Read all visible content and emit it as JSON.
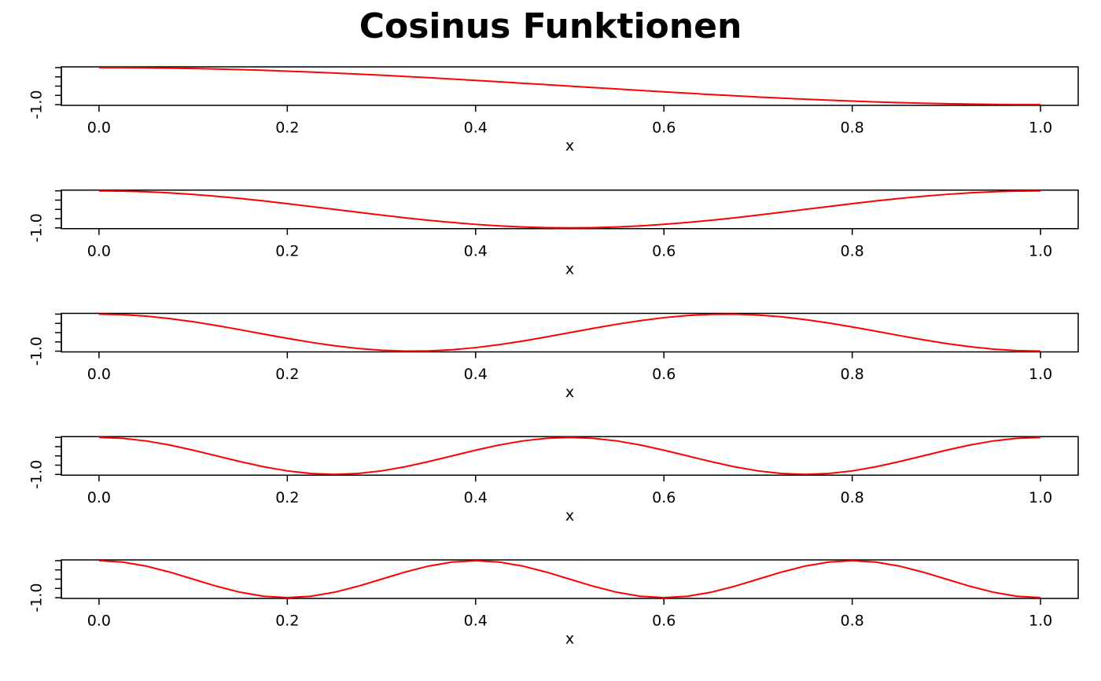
{
  "title": "Cosinus Funktionen",
  "chart_data": [
    {
      "type": "line",
      "xlabel": "x",
      "x": [
        0,
        0.025,
        0.05,
        0.075,
        0.1,
        0.125,
        0.15,
        0.175,
        0.2,
        0.225,
        0.25,
        0.275,
        0.3,
        0.325,
        0.35,
        0.375,
        0.4,
        0.425,
        0.45,
        0.475,
        0.5,
        0.525,
        0.55,
        0.575,
        0.6,
        0.625,
        0.65,
        0.675,
        0.7,
        0.725,
        0.75,
        0.775,
        0.8,
        0.825,
        0.85,
        0.875,
        0.9,
        0.925,
        0.95,
        0.975,
        1
      ],
      "series": [
        {
          "color": "#ff0000",
          "values": [
            1,
            0.997,
            0.988,
            0.972,
            0.951,
            0.924,
            0.891,
            0.853,
            0.809,
            0.76,
            0.707,
            0.649,
            0.588,
            0.522,
            0.454,
            0.383,
            0.309,
            0.233,
            0.156,
            0.078,
            0,
            -0.078,
            -0.156,
            -0.233,
            -0.309,
            -0.383,
            -0.454,
            -0.522,
            -0.588,
            -0.649,
            -0.707,
            -0.76,
            -0.809,
            -0.853,
            -0.891,
            -0.924,
            -0.951,
            -0.972,
            -0.988,
            -0.997,
            -1
          ]
        }
      ],
      "xlim": [
        -0.04,
        1.04
      ],
      "ylim": [
        -1.04,
        1.04
      ],
      "xticks": [
        {
          "value": 0,
          "label": "0.0"
        },
        0.2,
        0.4,
        0.6,
        0.8,
        {
          "value": 1,
          "label": "1.0"
        }
      ],
      "yticks": [
        {
          "value": -1,
          "label": "-1.0"
        }
      ],
      "yminor_ticks": [
        -0.5,
        0,
        0.5,
        1
      ]
    },
    {
      "type": "line",
      "xlabel": "x",
      "x": [
        0,
        0.025,
        0.05,
        0.075,
        0.1,
        0.125,
        0.15,
        0.175,
        0.2,
        0.225,
        0.25,
        0.275,
        0.3,
        0.325,
        0.35,
        0.375,
        0.4,
        0.425,
        0.45,
        0.475,
        0.5,
        0.525,
        0.55,
        0.575,
        0.6,
        0.625,
        0.65,
        0.675,
        0.7,
        0.725,
        0.75,
        0.775,
        0.8,
        0.825,
        0.85,
        0.875,
        0.9,
        0.925,
        0.95,
        0.975,
        1
      ],
      "series": [
        {
          "color": "#ff0000",
          "values": [
            1,
            0.988,
            0.951,
            0.891,
            0.809,
            0.707,
            0.588,
            0.454,
            0.309,
            0.156,
            0,
            -0.156,
            -0.309,
            -0.454,
            -0.588,
            -0.707,
            -0.809,
            -0.891,
            -0.951,
            -0.988,
            -1,
            -0.988,
            -0.951,
            -0.891,
            -0.809,
            -0.707,
            -0.588,
            -0.454,
            -0.309,
            -0.156,
            0,
            0.156,
            0.309,
            0.454,
            0.588,
            0.707,
            0.809,
            0.891,
            0.951,
            0.988,
            1
          ]
        }
      ],
      "xlim": [
        -0.04,
        1.04
      ],
      "ylim": [
        -1.04,
        1.04
      ],
      "xticks": [
        {
          "value": 0,
          "label": "0.0"
        },
        0.2,
        0.4,
        0.6,
        0.8,
        {
          "value": 1,
          "label": "1.0"
        }
      ],
      "yticks": [
        {
          "value": -1,
          "label": "-1.0"
        }
      ],
      "yminor_ticks": [
        -0.5,
        0,
        0.5,
        1
      ]
    },
    {
      "type": "line",
      "xlabel": "x",
      "x": [
        0,
        0.025,
        0.05,
        0.075,
        0.1,
        0.125,
        0.15,
        0.175,
        0.2,
        0.225,
        0.25,
        0.275,
        0.3,
        0.325,
        0.35,
        0.375,
        0.4,
        0.425,
        0.45,
        0.475,
        0.5,
        0.525,
        0.55,
        0.575,
        0.6,
        0.625,
        0.65,
        0.675,
        0.7,
        0.725,
        0.75,
        0.775,
        0.8,
        0.825,
        0.85,
        0.875,
        0.9,
        0.925,
        0.95,
        0.975,
        1
      ],
      "series": [
        {
          "color": "#ff0000",
          "values": [
            1,
            0.972,
            0.891,
            0.76,
            0.588,
            0.383,
            0.156,
            -0.078,
            -0.309,
            -0.522,
            -0.707,
            -0.853,
            -0.951,
            -0.997,
            -0.988,
            -0.924,
            -0.809,
            -0.649,
            -0.454,
            -0.233,
            0,
            0.233,
            0.454,
            0.649,
            0.809,
            0.924,
            0.988,
            0.997,
            0.951,
            0.853,
            0.707,
            0.522,
            0.309,
            0.078,
            -0.156,
            -0.383,
            -0.588,
            -0.76,
            -0.891,
            -0.972,
            -1
          ]
        }
      ],
      "xlim": [
        -0.04,
        1.04
      ],
      "ylim": [
        -1.04,
        1.04
      ],
      "xticks": [
        {
          "value": 0,
          "label": "0.0"
        },
        0.2,
        0.4,
        0.6,
        0.8,
        {
          "value": 1,
          "label": "1.0"
        }
      ],
      "yticks": [
        {
          "value": -1,
          "label": "-1.0"
        }
      ],
      "yminor_ticks": [
        -0.5,
        0,
        0.5,
        1
      ]
    },
    {
      "type": "line",
      "xlabel": "x",
      "x": [
        0,
        0.025,
        0.05,
        0.075,
        0.1,
        0.125,
        0.15,
        0.175,
        0.2,
        0.225,
        0.25,
        0.275,
        0.3,
        0.325,
        0.35,
        0.375,
        0.4,
        0.425,
        0.45,
        0.475,
        0.5,
        0.525,
        0.55,
        0.575,
        0.6,
        0.625,
        0.65,
        0.675,
        0.7,
        0.725,
        0.75,
        0.775,
        0.8,
        0.825,
        0.85,
        0.875,
        0.9,
        0.925,
        0.95,
        0.975,
        1
      ],
      "series": [
        {
          "color": "#ff0000",
          "values": [
            1,
            0.951,
            0.809,
            0.588,
            0.309,
            0,
            -0.309,
            -0.588,
            -0.809,
            -0.951,
            -1,
            -0.951,
            -0.809,
            -0.588,
            -0.309,
            0,
            0.309,
            0.588,
            0.809,
            0.951,
            1,
            0.951,
            0.809,
            0.588,
            0.309,
            0,
            -0.309,
            -0.588,
            -0.809,
            -0.951,
            -1,
            -0.951,
            -0.809,
            -0.588,
            -0.309,
            0,
            0.309,
            0.588,
            0.809,
            0.951,
            1
          ]
        }
      ],
      "xlim": [
        -0.04,
        1.04
      ],
      "ylim": [
        -1.04,
        1.04
      ],
      "xticks": [
        {
          "value": 0,
          "label": "0.0"
        },
        0.2,
        0.4,
        0.6,
        0.8,
        {
          "value": 1,
          "label": "1.0"
        }
      ],
      "yticks": [
        {
          "value": -1,
          "label": "-1.0"
        }
      ],
      "yminor_ticks": [
        -0.5,
        0,
        0.5,
        1
      ]
    },
    {
      "type": "line",
      "xlabel": "x",
      "x": [
        0,
        0.025,
        0.05,
        0.075,
        0.1,
        0.125,
        0.15,
        0.175,
        0.2,
        0.225,
        0.25,
        0.275,
        0.3,
        0.325,
        0.35,
        0.375,
        0.4,
        0.425,
        0.45,
        0.475,
        0.5,
        0.525,
        0.55,
        0.575,
        0.6,
        0.625,
        0.65,
        0.675,
        0.7,
        0.725,
        0.75,
        0.775,
        0.8,
        0.825,
        0.85,
        0.875,
        0.9,
        0.925,
        0.95,
        0.975,
        1
      ],
      "series": [
        {
          "color": "#ff0000",
          "values": [
            1,
            0.924,
            0.707,
            0.383,
            0,
            -0.383,
            -0.707,
            -0.924,
            -1,
            -0.924,
            -0.707,
            -0.383,
            0,
            0.383,
            0.707,
            0.924,
            1,
            0.924,
            0.707,
            0.383,
            0,
            -0.383,
            -0.707,
            -0.924,
            -1,
            -0.924,
            -0.707,
            -0.383,
            0,
            0.383,
            0.707,
            0.924,
            1,
            0.924,
            0.707,
            0.383,
            0,
            -0.383,
            -0.707,
            -0.924,
            -1
          ]
        }
      ],
      "xlim": [
        -0.04,
        1.04
      ],
      "ylim": [
        -1.04,
        1.04
      ],
      "xticks": [
        {
          "value": 0,
          "label": "0.0"
        },
        0.2,
        0.4,
        0.6,
        0.8,
        {
          "value": 1,
          "label": "1.0"
        }
      ],
      "yticks": [
        {
          "value": -1,
          "label": "-1.0"
        }
      ],
      "yminor_ticks": [
        -0.5,
        0,
        0.5,
        1
      ]
    }
  ]
}
